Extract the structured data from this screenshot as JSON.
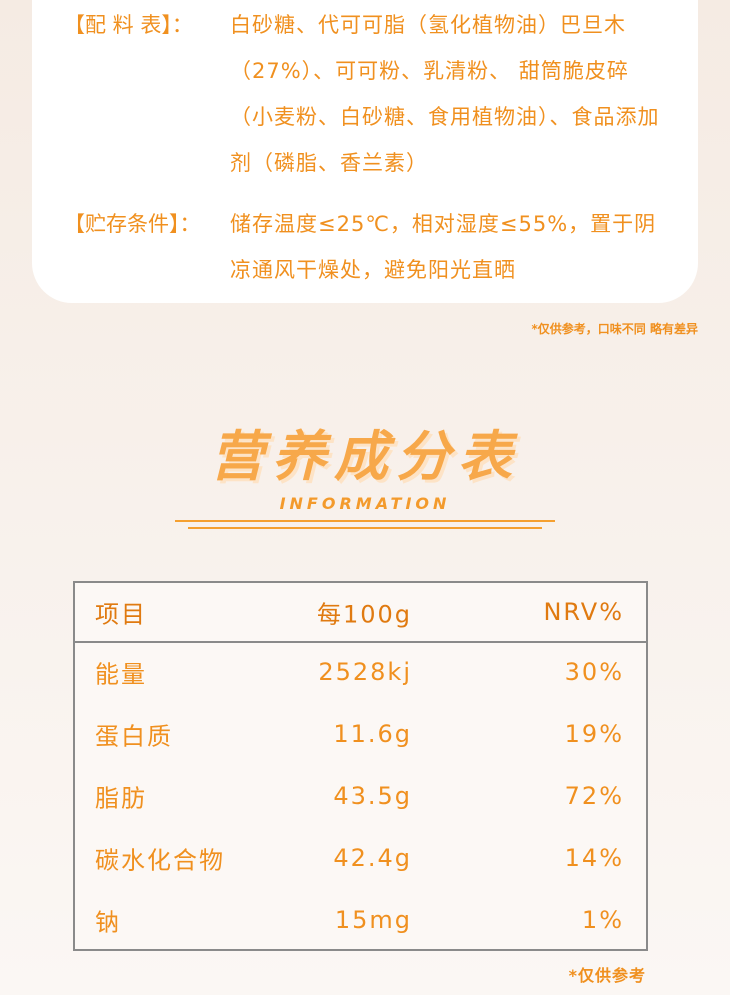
{
  "ingredients": {
    "label": "【配 料 表】：",
    "text": "白砂糖、代可可脂（氢化植物油）巴旦木（27%）、可可粉、乳清粉、 甜筒脆皮碎（小麦粉、白砂糖、食用植物油）、食品添加剂（磷脂、香兰素）"
  },
  "storage": {
    "label": "【贮存条件】：",
    "text": "储存温度≤25℃，相对湿度≤55%，置于阴凉通风干燥处，避免阳光直晒"
  },
  "note": "*仅供参考，口味不同 略有差异",
  "section": {
    "title": "营养成分表",
    "subtitle": "INFORMATION"
  },
  "table": {
    "header": [
      "项目",
      "每100g",
      "NRV%"
    ],
    "rows": [
      [
        "能量",
        "2528kj",
        "30%"
      ],
      [
        "蛋白质",
        "11.6g",
        "19%"
      ],
      [
        "脂肪",
        "43.5g",
        "72%"
      ],
      [
        "碳水化合物",
        "42.4g",
        "14%"
      ],
      [
        "钠",
        "15mg",
        "1%"
      ]
    ]
  },
  "footnote": "*仅供参考"
}
